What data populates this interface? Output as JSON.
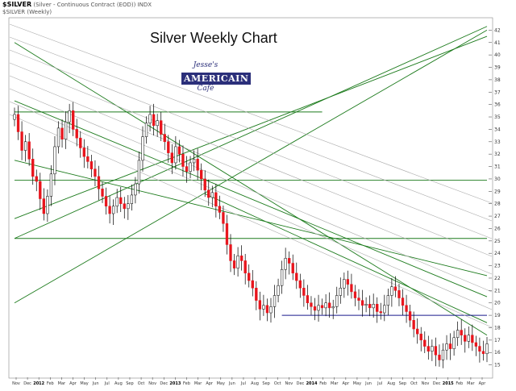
{
  "header": {
    "symbol": "$SILVER",
    "description": "(Silver - Continuous Contract (EOD)) INDX",
    "series_label": "$SILVER (Weekly)"
  },
  "chart_title": "Silver Weekly Chart",
  "logo": {
    "line1": "Jesse's",
    "line2": "AMERICAIN",
    "line3": "Café"
  },
  "colors": {
    "up_candle": "#ffffff",
    "down_candle": "#e8141c",
    "wick": "#000000",
    "trendline": "#1b7a1b",
    "fan_line": "#aaaaaa",
    "support_line": "#1a1a8c"
  },
  "chart_data": {
    "type": "candlestick",
    "title": "Silver Weekly Chart",
    "xlabel": "",
    "ylabel": "",
    "ylim": [
      14,
      43
    ],
    "y_ticks": [
      15,
      16,
      17,
      18,
      19,
      20,
      21,
      22,
      23,
      24,
      25,
      26,
      27,
      28,
      29,
      30,
      31,
      32,
      33,
      34,
      35,
      36,
      37,
      38,
      39,
      40,
      41,
      42
    ],
    "x_ticks": [
      "Nov",
      "Dec",
      "2012",
      "Feb",
      "Mar",
      "Apr",
      "May",
      "Jun",
      "Jul",
      "Aug",
      "Sep",
      "Oct",
      "Nov",
      "Dec",
      "2013",
      "Feb",
      "Mar",
      "Apr",
      "May",
      "Jun",
      "Jul",
      "Aug",
      "Sep",
      "Oct",
      "Nov",
      "Dec",
      "2014",
      "Feb",
      "Mar",
      "Apr",
      "May",
      "Jun",
      "Jul",
      "Aug",
      "Sep",
      "Oct",
      "Nov",
      "Dec",
      "2015",
      "Feb",
      "Mar",
      "Apr"
    ],
    "year_ticks": [
      "2012",
      "2013",
      "2014",
      "2015"
    ],
    "grid": false,
    "close_path": [
      [
        0,
        35.2
      ],
      [
        1,
        33.8
      ],
      [
        2,
        32.3
      ],
      [
        3,
        33.0
      ],
      [
        4,
        31.6
      ],
      [
        5,
        30.2
      ],
      [
        6,
        29.8
      ],
      [
        7,
        28.4
      ],
      [
        8,
        27.2
      ],
      [
        9,
        28.6
      ],
      [
        10,
        30.4
      ],
      [
        11,
        32.6
      ],
      [
        12,
        34.1
      ],
      [
        13,
        33.2
      ],
      [
        14,
        34.6
      ],
      [
        15,
        35.5
      ],
      [
        16,
        34.0
      ],
      [
        17,
        33.3
      ],
      [
        18,
        32.5
      ],
      [
        19,
        31.8
      ],
      [
        20,
        31.4
      ],
      [
        21,
        30.8
      ],
      [
        22,
        30.2
      ],
      [
        23,
        29.2
      ],
      [
        24,
        28.6
      ],
      [
        25,
        27.8
      ],
      [
        26,
        27.2
      ],
      [
        27,
        27.8
      ],
      [
        28,
        28.5
      ],
      [
        29,
        28.0
      ],
      [
        30,
        27.6
      ],
      [
        31,
        28.0
      ],
      [
        32,
        28.7
      ],
      [
        33,
        29.6
      ],
      [
        34,
        31.5
      ],
      [
        35,
        33.4
      ],
      [
        36,
        34.5
      ],
      [
        37,
        35.2
      ],
      [
        38,
        34.3
      ],
      [
        39,
        34.7
      ],
      [
        40,
        33.6
      ],
      [
        41,
        33.0
      ],
      [
        42,
        32.1
      ],
      [
        43,
        31.3
      ],
      [
        44,
        32.6
      ],
      [
        45,
        32.0
      ],
      [
        46,
        31.0
      ],
      [
        47,
        30.6
      ],
      [
        48,
        31.3
      ],
      [
        49,
        31.6
      ],
      [
        50,
        30.7
      ],
      [
        51,
        30.0
      ],
      [
        52,
        29.1
      ],
      [
        53,
        28.5
      ],
      [
        54,
        28.9
      ],
      [
        55,
        27.8
      ],
      [
        56,
        27.3
      ],
      [
        57,
        26.4
      ],
      [
        58,
        24.7
      ],
      [
        59,
        23.4
      ],
      [
        60,
        22.8
      ],
      [
        61,
        23.8
      ],
      [
        62,
        23.4
      ],
      [
        63,
        22.4
      ],
      [
        64,
        21.8
      ],
      [
        65,
        21.2
      ],
      [
        66,
        20.2
      ],
      [
        67,
        19.5
      ],
      [
        68,
        19.8
      ],
      [
        69,
        19.2
      ],
      [
        70,
        19.7
      ],
      [
        71,
        20.6
      ],
      [
        72,
        21.4
      ],
      [
        73,
        22.7
      ],
      [
        74,
        23.6
      ],
      [
        75,
        23.2
      ],
      [
        76,
        22.4
      ],
      [
        77,
        21.8
      ],
      [
        78,
        21.2
      ],
      [
        79,
        20.6
      ],
      [
        80,
        20.0
      ],
      [
        81,
        19.7
      ],
      [
        82,
        19.4
      ],
      [
        83,
        19.8
      ],
      [
        84,
        19.6
      ],
      [
        85,
        20.0
      ],
      [
        86,
        19.6
      ],
      [
        87,
        19.7
      ],
      [
        88,
        20.6
      ],
      [
        89,
        21.2
      ],
      [
        90,
        21.9
      ],
      [
        91,
        21.5
      ],
      [
        92,
        20.9
      ],
      [
        93,
        20.4
      ],
      [
        94,
        20.2
      ],
      [
        95,
        19.8
      ],
      [
        96,
        19.9
      ],
      [
        97,
        19.6
      ],
      [
        98,
        19.9
      ],
      [
        99,
        19.3
      ],
      [
        100,
        19.2
      ],
      [
        101,
        19.8
      ],
      [
        102,
        20.6
      ],
      [
        103,
        21.3
      ],
      [
        104,
        21.0
      ],
      [
        105,
        20.4
      ],
      [
        106,
        19.8
      ],
      [
        107,
        19.3
      ],
      [
        108,
        18.6
      ],
      [
        109,
        17.9
      ],
      [
        110,
        17.5
      ],
      [
        111,
        17.0
      ],
      [
        112,
        16.5
      ],
      [
        113,
        16.1
      ],
      [
        114,
        16.5
      ],
      [
        115,
        15.8
      ],
      [
        116,
        15.4
      ],
      [
        117,
        16.2
      ],
      [
        118,
        16.7
      ],
      [
        119,
        16.3
      ],
      [
        120,
        17.2
      ],
      [
        121,
        17.8
      ],
      [
        122,
        17.4
      ],
      [
        123,
        16.9
      ],
      [
        124,
        17.4
      ],
      [
        125,
        16.8
      ],
      [
        126,
        16.5
      ],
      [
        127,
        16.1
      ],
      [
        128,
        15.9
      ],
      [
        129,
        16.7
      ]
    ],
    "trendlines": [
      {
        "from": [
          0,
          20.0
        ],
        "to": [
          129,
          42.0
        ],
        "kind": "green"
      },
      {
        "from": [
          0,
          25.2
        ],
        "to": [
          129,
          42.3
        ],
        "kind": "green"
      },
      {
        "from": [
          0,
          26.8
        ],
        "to": [
          129,
          41.5
        ],
        "kind": "green"
      },
      {
        "from": [
          0,
          41.0
        ],
        "to": [
          129,
          17.4
        ],
        "kind": "green"
      },
      {
        "from": [
          0,
          36.3
        ],
        "to": [
          129,
          20.5
        ],
        "kind": "green"
      },
      {
        "from": [
          0,
          31.5
        ],
        "to": [
          129,
          22.2
        ],
        "kind": "green"
      },
      {
        "from": [
          52,
          28.8
        ],
        "to": [
          129,
          18.4
        ],
        "kind": "green"
      },
      {
        "from": [
          0,
          25.2
        ],
        "to": [
          129,
          25.2
        ],
        "kind": "green"
      },
      {
        "from": [
          0,
          29.9
        ],
        "to": [
          129,
          29.9
        ],
        "kind": "green"
      },
      {
        "from": [
          0,
          35.4
        ],
        "to": [
          84,
          35.4
        ],
        "kind": "green"
      },
      {
        "from": [
          73,
          19.0
        ],
        "to": [
          129,
          19.0
        ],
        "kind": "support"
      }
    ]
  }
}
